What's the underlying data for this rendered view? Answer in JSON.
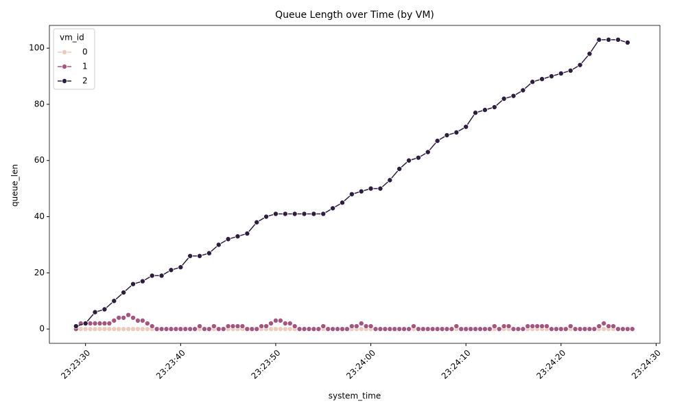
{
  "chart_data": {
    "type": "line",
    "title": "Queue Length over Time (by VM)",
    "x_label": "system_time",
    "y_label": "queue_len",
    "legend_title": "vm_id",
    "legend_position": "upper left",
    "xlim": [
      "23:23:26.2",
      "23:24:30.4"
    ],
    "xticks": [
      "23:23:30",
      "23:23:40",
      "23:23:50",
      "23:24:00",
      "23:24:10",
      "23:24:20",
      "23:24:30"
    ],
    "ylim": [
      -5.1,
      108.1
    ],
    "yticks": [
      0,
      20,
      40,
      60,
      80,
      100
    ],
    "series": [
      {
        "name": "0",
        "color": "#eccbbb",
        "x": [
          "23:23:29",
          "23:23:29.5",
          "23:23:30",
          "23:23:30.5",
          "23:23:31",
          "23:23:31.5",
          "23:23:32",
          "23:23:32.5",
          "23:23:33",
          "23:23:33.5",
          "23:23:34",
          "23:23:34.5",
          "23:23:35",
          "23:23:35.5",
          "23:23:36",
          "23:23:36.5",
          "23:23:37",
          "23:23:37.5",
          "23:23:38",
          "23:23:38.5",
          "23:23:39",
          "23:23:39.5",
          "23:23:40",
          "23:23:40.5",
          "23:23:41",
          "23:23:41.5",
          "23:23:42",
          "23:23:42.5",
          "23:23:43",
          "23:23:43.5",
          "23:23:44",
          "23:23:44.5",
          "23:23:45",
          "23:23:45.5",
          "23:23:46",
          "23:23:46.5",
          "23:23:47",
          "23:23:47.5",
          "23:23:48",
          "23:23:48.5",
          "23:23:49",
          "23:23:49.5",
          "23:23:50",
          "23:23:50.5",
          "23:23:51",
          "23:23:51.5",
          "23:23:52",
          "23:23:52.5",
          "23:23:53",
          "23:23:53.5",
          "23:23:54",
          "23:23:54.5",
          "23:23:55",
          "23:23:55.5",
          "23:23:56",
          "23:23:56.5",
          "23:23:57",
          "23:23:57.5",
          "23:23:58",
          "23:23:58.5",
          "23:23:59",
          "23:23:59.5",
          "23:24:00",
          "23:24:00.5",
          "23:24:01",
          "23:24:01.5",
          "23:24:02",
          "23:24:02.5",
          "23:24:03",
          "23:24:03.5",
          "23:24:04",
          "23:24:04.5",
          "23:24:05",
          "23:24:05.5",
          "23:24:06",
          "23:24:06.5",
          "23:24:07",
          "23:24:07.5",
          "23:24:08",
          "23:24:08.5",
          "23:24:09",
          "23:24:09.5",
          "23:24:10",
          "23:24:10.5",
          "23:24:11",
          "23:24:11.5",
          "23:24:12",
          "23:24:12.5",
          "23:24:13",
          "23:24:13.5",
          "23:24:14",
          "23:24:14.5",
          "23:24:15",
          "23:24:15.5",
          "23:24:16",
          "23:24:16.5",
          "23:24:17",
          "23:24:17.5",
          "23:24:18",
          "23:24:18.5",
          "23:24:19",
          "23:24:19.5",
          "23:24:20",
          "23:24:20.5",
          "23:24:21",
          "23:24:21.5",
          "23:24:22",
          "23:24:22.5",
          "23:24:23",
          "23:24:23.5",
          "23:24:24",
          "23:24:24.5",
          "23:24:25",
          "23:24:25.5",
          "23:24:26",
          "23:24:26.5",
          "23:24:27",
          "23:24:27.5"
        ],
        "values": [
          0,
          0,
          0,
          0,
          0,
          0,
          0,
          0,
          0,
          0,
          0,
          0,
          0,
          0,
          0,
          0,
          0,
          0,
          0,
          0,
          0,
          0,
          0,
          0,
          0,
          0,
          0,
          0,
          0,
          0,
          0,
          0,
          0,
          0,
          0,
          0,
          0,
          0,
          0,
          0,
          0,
          0,
          0,
          0,
          0,
          0,
          0,
          0,
          0,
          0,
          0,
          0,
          0,
          0,
          0,
          0,
          0,
          0,
          0,
          0,
          0,
          0,
          0,
          0,
          0,
          0,
          0,
          0,
          0,
          0,
          0,
          0,
          0,
          0,
          0,
          0,
          0,
          0,
          0,
          0,
          0,
          0,
          0,
          0,
          0,
          0,
          0,
          0,
          0,
          0,
          0,
          0,
          0,
          0,
          0,
          0,
          0,
          0,
          0,
          0,
          0,
          0,
          0,
          0,
          0,
          0,
          0,
          0,
          0,
          0,
          0,
          0,
          0,
          0,
          0,
          0,
          0,
          0
        ]
      },
      {
        "name": "1",
        "color": "#a3577f",
        "x": [
          "23:23:29",
          "23:23:29.5",
          "23:23:30",
          "23:23:30.5",
          "23:23:31",
          "23:23:31.5",
          "23:23:32",
          "23:23:32.5",
          "23:23:33",
          "23:23:33.5",
          "23:23:34",
          "23:23:34.5",
          "23:23:35",
          "23:23:35.5",
          "23:23:36",
          "23:23:36.5",
          "23:23:37",
          "23:23:37.5",
          "23:23:38",
          "23:23:38.5",
          "23:23:39",
          "23:23:39.5",
          "23:23:40",
          "23:23:40.5",
          "23:23:41",
          "23:23:41.5",
          "23:23:42",
          "23:23:42.5",
          "23:23:43",
          "23:23:43.5",
          "23:23:44",
          "23:23:44.5",
          "23:23:45",
          "23:23:45.5",
          "23:23:46",
          "23:23:46.5",
          "23:23:47",
          "23:23:47.5",
          "23:23:48",
          "23:23:48.5",
          "23:23:49",
          "23:23:49.5",
          "23:23:50",
          "23:23:50.5",
          "23:23:51",
          "23:23:51.5",
          "23:23:52",
          "23:23:52.5",
          "23:23:53",
          "23:23:53.5",
          "23:23:54",
          "23:23:54.5",
          "23:23:55",
          "23:23:55.5",
          "23:23:56",
          "23:23:56.5",
          "23:23:57",
          "23:23:57.5",
          "23:23:58",
          "23:23:58.5",
          "23:23:59",
          "23:23:59.5",
          "23:24:00",
          "23:24:00.5",
          "23:24:01",
          "23:24:01.5",
          "23:24:02",
          "23:24:02.5",
          "23:24:03",
          "23:24:03.5",
          "23:24:04",
          "23:24:04.5",
          "23:24:05",
          "23:24:05.5",
          "23:24:06",
          "23:24:06.5",
          "23:24:07",
          "23:24:07.5",
          "23:24:08",
          "23:24:08.5",
          "23:24:09",
          "23:24:09.5",
          "23:24:10",
          "23:24:10.5",
          "23:24:11",
          "23:24:11.5",
          "23:24:12",
          "23:24:12.5",
          "23:24:13",
          "23:24:13.5",
          "23:24:14",
          "23:24:14.5",
          "23:24:15",
          "23:24:15.5",
          "23:24:16",
          "23:24:16.5",
          "23:24:17",
          "23:24:17.5",
          "23:24:18",
          "23:24:18.5",
          "23:24:19",
          "23:24:19.5",
          "23:24:20",
          "23:24:20.5",
          "23:24:21",
          "23:24:21.5",
          "23:24:22",
          "23:24:22.5",
          "23:24:23",
          "23:24:23.5",
          "23:24:24",
          "23:24:24.5",
          "23:24:25",
          "23:24:25.5",
          "23:24:26",
          "23:24:26.5",
          "23:24:27",
          "23:24:27.5"
        ],
        "values": [
          0,
          2,
          2,
          2,
          2,
          2,
          2,
          2,
          3,
          4,
          4,
          5,
          4,
          3,
          3,
          2,
          1,
          0,
          0,
          0,
          0,
          0,
          0,
          0,
          0,
          0,
          1,
          0,
          0,
          1,
          0,
          0,
          1,
          1,
          1,
          1,
          0,
          0,
          0,
          1,
          1,
          2,
          3,
          3,
          2,
          2,
          1,
          0,
          0,
          0,
          0,
          0,
          1,
          0,
          0,
          0,
          0,
          0,
          1,
          1,
          2,
          1,
          1,
          0,
          0,
          0,
          0,
          0,
          0,
          0,
          0,
          1,
          0,
          0,
          0,
          0,
          0,
          0,
          0,
          0,
          1,
          0,
          0,
          0,
          0,
          0,
          0,
          0,
          1,
          0,
          1,
          1,
          0,
          0,
          0,
          1,
          1,
          1,
          1,
          1,
          0,
          0,
          0,
          0,
          1,
          0,
          0,
          0,
          0,
          0,
          1,
          2,
          1,
          1,
          0,
          0,
          0,
          0
        ]
      },
      {
        "name": "2",
        "color": "#2d1e3e",
        "x": [
          "23:23:29",
          "23:23:30",
          "23:23:31",
          "23:23:32",
          "23:23:33",
          "23:23:34",
          "23:23:35",
          "23:23:36",
          "23:23:37",
          "23:23:38",
          "23:23:39",
          "23:23:40",
          "23:23:41",
          "23:23:42",
          "23:23:43",
          "23:23:44",
          "23:23:45",
          "23:23:46",
          "23:23:47",
          "23:23:48",
          "23:23:49",
          "23:23:50",
          "23:23:51",
          "23:23:52",
          "23:23:53",
          "23:23:54",
          "23:23:55",
          "23:23:56",
          "23:23:57",
          "23:23:58",
          "23:23:59",
          "23:24:00",
          "23:24:01",
          "23:24:02",
          "23:24:03",
          "23:24:04",
          "23:24:05",
          "23:24:06",
          "23:24:07",
          "23:24:08",
          "23:24:09",
          "23:24:10",
          "23:24:11",
          "23:24:12",
          "23:24:13",
          "23:24:14",
          "23:24:15",
          "23:24:16",
          "23:24:17",
          "23:24:18",
          "23:24:19",
          "23:24:20",
          "23:24:21",
          "23:24:22",
          "23:24:23",
          "23:24:24",
          "23:24:25",
          "23:24:26",
          "23:24:27"
        ],
        "values": [
          1,
          2,
          6,
          7,
          10,
          13,
          16,
          17,
          19,
          19,
          21,
          22,
          26,
          26,
          27,
          30,
          32,
          33,
          34,
          38,
          40,
          41,
          41,
          41,
          41,
          41,
          41,
          43,
          45,
          48,
          49,
          50,
          50,
          53,
          57,
          60,
          61,
          63,
          67,
          69,
          70,
          72,
          77,
          78,
          79,
          82,
          83,
          85,
          88,
          89,
          90,
          91,
          92,
          94,
          98,
          103,
          103,
          103,
          102
        ]
      }
    ]
  }
}
